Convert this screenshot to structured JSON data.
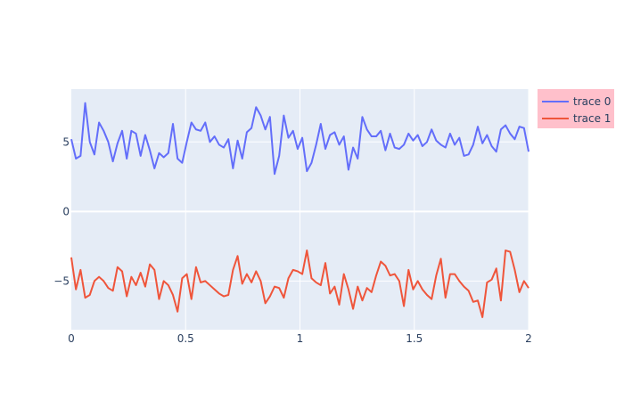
{
  "chart_data": {
    "type": "line",
    "title": "",
    "xlabel": "",
    "ylabel": "",
    "xlim": [
      0,
      2
    ],
    "ylim": [
      -8.5,
      8.8
    ],
    "x_ticks": [
      0,
      0.5,
      1,
      1.5,
      2
    ],
    "x_tick_labels": [
      "0",
      "0.5",
      "1",
      "1.5",
      "2"
    ],
    "y_ticks": [
      -5,
      0,
      5
    ],
    "y_tick_labels": [
      "−5",
      "0",
      "5"
    ],
    "grid": true,
    "legend_position": "top-right",
    "x_start": 0,
    "x_end": 2,
    "series": [
      {
        "name": "trace 0",
        "color": "#636efa",
        "values": [
          5.2,
          3.8,
          4.0,
          7.8,
          5.0,
          4.1,
          6.4,
          5.8,
          5.0,
          3.6,
          4.9,
          5.8,
          3.8,
          5.8,
          5.6,
          4.0,
          5.5,
          4.4,
          3.1,
          4.2,
          3.9,
          4.2,
          6.3,
          3.8,
          3.5,
          5.0,
          6.4,
          5.9,
          5.8,
          6.4,
          5.0,
          5.4,
          4.8,
          4.6,
          5.2,
          3.1,
          5.1,
          3.8,
          5.7,
          6.0,
          7.5,
          6.9,
          5.9,
          6.8,
          2.7,
          4.0,
          6.9,
          5.3,
          5.8,
          4.5,
          5.3,
          2.9,
          3.5,
          4.8,
          6.3,
          4.5,
          5.5,
          5.7,
          4.8,
          5.4,
          3.0,
          4.6,
          3.8,
          6.8,
          5.9,
          5.4,
          5.4,
          5.8,
          4.4,
          5.6,
          4.6,
          4.5,
          4.8,
          5.6,
          5.1,
          5.5,
          4.7,
          5.0,
          5.9,
          5.1,
          4.8,
          4.6,
          5.6,
          4.8,
          5.3,
          4.0,
          4.1,
          4.8,
          6.1,
          4.9,
          5.5,
          4.7,
          4.3,
          5.9,
          6.2,
          5.6,
          5.2,
          6.1,
          6.0,
          4.3
        ]
      },
      {
        "name": "trace 1",
        "color": "#ef553b",
        "values": [
          -3.3,
          -5.6,
          -4.2,
          -6.2,
          -6.0,
          -5.0,
          -4.7,
          -5.0,
          -5.5,
          -5.7,
          -4.0,
          -4.3,
          -6.1,
          -4.7,
          -5.3,
          -4.4,
          -5.4,
          -3.8,
          -4.2,
          -6.3,
          -5.0,
          -5.3,
          -6.0,
          -7.2,
          -4.8,
          -4.5,
          -6.3,
          -4.0,
          -5.1,
          -5.0,
          -5.3,
          -5.6,
          -5.9,
          -6.1,
          -6.0,
          -4.2,
          -3.2,
          -5.2,
          -4.5,
          -5.1,
          -4.3,
          -5.0,
          -6.6,
          -6.1,
          -5.4,
          -5.5,
          -6.2,
          -4.8,
          -4.2,
          -4.3,
          -4.5,
          -2.8,
          -4.8,
          -5.1,
          -5.3,
          -3.7,
          -5.9,
          -5.4,
          -6.7,
          -4.5,
          -5.6,
          -7.0,
          -5.4,
          -6.4,
          -5.5,
          -5.8,
          -4.6,
          -3.6,
          -3.9,
          -4.6,
          -4.5,
          -5.0,
          -6.8,
          -4.2,
          -5.6,
          -5.0,
          -5.6,
          -6.0,
          -6.3,
          -4.6,
          -3.4,
          -6.2,
          -4.5,
          -4.5,
          -5.0,
          -5.4,
          -5.7,
          -6.5,
          -6.4,
          -7.6,
          -5.1,
          -4.9,
          -4.1,
          -6.4,
          -2.8,
          -2.9,
          -4.2,
          -5.8,
          -5.0,
          -5.5
        ]
      }
    ]
  }
}
